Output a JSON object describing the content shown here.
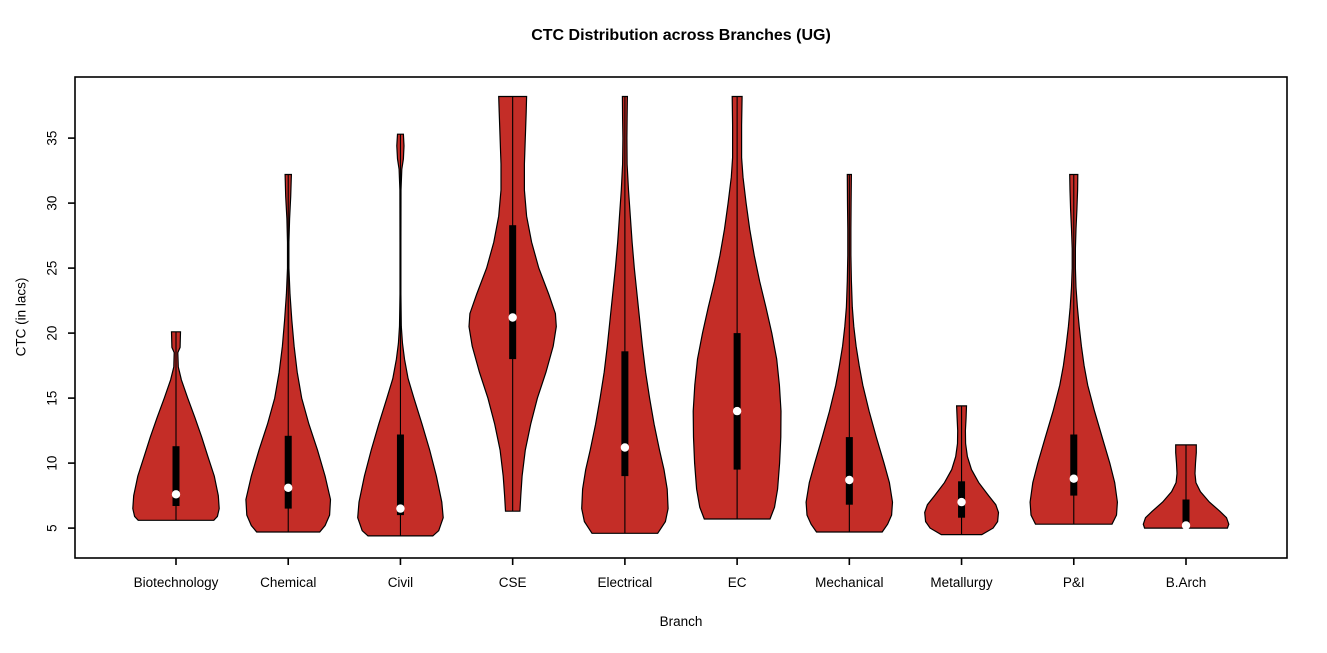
{
  "chart_data": {
    "type": "violin",
    "title": "CTC Distribution across Branches (UG)",
    "xlabel": "Branch",
    "ylabel": "CTC (in lacs)",
    "y_ticks": [
      5,
      10,
      15,
      20,
      25,
      30,
      35
    ],
    "ylim": [
      2.7,
      39.7
    ],
    "grid": false,
    "legend": "none",
    "fill_color": "#C42D27",
    "outline_color": "#000000",
    "box_color": "#000000",
    "median_dot_color": "#ffffff",
    "categories": [
      "Biotechnology",
      "Chemical",
      "Civil",
      "CSE",
      "Electrical",
      "EC",
      "Mechanical",
      "Metallurgy",
      "P&I",
      "B.Arch"
    ],
    "series": [
      {
        "branch": "Biotechnology",
        "stats": {
          "min": 5.6,
          "q1": 6.7,
          "median": 7.6,
          "q3": 11.3,
          "max": 20.1
        },
        "density_profile": [
          [
            20.1,
            0.1
          ],
          [
            18.9,
            0.09
          ],
          [
            18.5,
            0.04
          ],
          [
            17.4,
            0.05
          ],
          [
            16.4,
            0.12
          ],
          [
            15.0,
            0.26
          ],
          [
            13.5,
            0.42
          ],
          [
            12.0,
            0.57
          ],
          [
            10.5,
            0.71
          ],
          [
            9.0,
            0.85
          ],
          [
            7.5,
            0.94
          ],
          [
            6.5,
            0.96
          ],
          [
            5.9,
            0.92
          ],
          [
            5.6,
            0.84
          ]
        ]
      },
      {
        "branch": "Chemical",
        "stats": {
          "min": 4.7,
          "q1": 6.5,
          "median": 8.1,
          "q3": 12.1,
          "max": 32.2
        },
        "density_profile": [
          [
            32.2,
            0.07
          ],
          [
            30.5,
            0.055
          ],
          [
            28.8,
            0.03
          ],
          [
            27.0,
            0.015
          ],
          [
            25.0,
            0.015
          ],
          [
            23.0,
            0.04
          ],
          [
            21.0,
            0.08
          ],
          [
            19.0,
            0.13
          ],
          [
            17.0,
            0.2
          ],
          [
            15.0,
            0.3
          ],
          [
            13.0,
            0.46
          ],
          [
            11.0,
            0.65
          ],
          [
            9.0,
            0.82
          ],
          [
            7.2,
            0.94
          ],
          [
            6.0,
            0.92
          ],
          [
            5.2,
            0.82
          ],
          [
            4.7,
            0.7
          ]
        ]
      },
      {
        "branch": "Civil",
        "stats": {
          "min": 4.4,
          "q1": 6.0,
          "median": 6.5,
          "q3": 12.2,
          "max": 35.3
        },
        "density_profile": [
          [
            35.3,
            0.065
          ],
          [
            34.4,
            0.08
          ],
          [
            33.4,
            0.065
          ],
          [
            32.6,
            0.03
          ],
          [
            31.0,
            0.012
          ],
          [
            27.0,
            0.01
          ],
          [
            23.0,
            0.01
          ],
          [
            20.5,
            0.02
          ],
          [
            19.2,
            0.045
          ],
          [
            18.0,
            0.09
          ],
          [
            16.5,
            0.17
          ],
          [
            15.0,
            0.3
          ],
          [
            13.0,
            0.48
          ],
          [
            11.0,
            0.65
          ],
          [
            9.0,
            0.8
          ],
          [
            7.0,
            0.92
          ],
          [
            5.8,
            0.95
          ],
          [
            4.8,
            0.85
          ],
          [
            4.4,
            0.72
          ]
        ]
      },
      {
        "branch": "CSE",
        "stats": {
          "min": 6.3,
          "q1": 18.0,
          "median": 21.2,
          "q3": 28.3,
          "max": 38.2
        },
        "density_profile": [
          [
            38.2,
            0.31
          ],
          [
            37.0,
            0.3
          ],
          [
            35.0,
            0.28
          ],
          [
            33.0,
            0.26
          ],
          [
            31.0,
            0.26
          ],
          [
            29.0,
            0.31
          ],
          [
            27.0,
            0.42
          ],
          [
            25.0,
            0.58
          ],
          [
            23.0,
            0.8
          ],
          [
            21.5,
            0.95
          ],
          [
            20.5,
            0.97
          ],
          [
            19.0,
            0.9
          ],
          [
            17.0,
            0.74
          ],
          [
            15.0,
            0.55
          ],
          [
            13.0,
            0.4
          ],
          [
            11.0,
            0.28
          ],
          [
            9.0,
            0.21
          ],
          [
            7.5,
            0.18
          ],
          [
            6.3,
            0.16
          ]
        ]
      },
      {
        "branch": "Electrical",
        "stats": {
          "min": 4.6,
          "q1": 9.0,
          "median": 11.2,
          "q3": 18.6,
          "max": 38.2
        },
        "density_profile": [
          [
            38.2,
            0.055
          ],
          [
            36.5,
            0.05
          ],
          [
            35.0,
            0.045
          ],
          [
            33.0,
            0.05
          ],
          [
            31.0,
            0.08
          ],
          [
            29.0,
            0.12
          ],
          [
            27.0,
            0.16
          ],
          [
            25.0,
            0.21
          ],
          [
            23.0,
            0.27
          ],
          [
            21.0,
            0.33
          ],
          [
            19.0,
            0.39
          ],
          [
            17.0,
            0.46
          ],
          [
            15.0,
            0.55
          ],
          [
            13.0,
            0.65
          ],
          [
            11.0,
            0.77
          ],
          [
            9.5,
            0.87
          ],
          [
            8.0,
            0.94
          ],
          [
            6.5,
            0.96
          ],
          [
            5.5,
            0.9
          ],
          [
            4.6,
            0.73
          ]
        ]
      },
      {
        "branch": "EC",
        "stats": {
          "min": 5.7,
          "q1": 9.5,
          "median": 14.0,
          "q3": 20.0,
          "max": 38.2
        },
        "density_profile": [
          [
            38.2,
            0.11
          ],
          [
            36.0,
            0.1
          ],
          [
            33.5,
            0.1
          ],
          [
            32.0,
            0.13
          ],
          [
            30.0,
            0.2
          ],
          [
            28.0,
            0.28
          ],
          [
            26.0,
            0.38
          ],
          [
            24.0,
            0.5
          ],
          [
            22.0,
            0.64
          ],
          [
            20.0,
            0.77
          ],
          [
            18.0,
            0.88
          ],
          [
            16.0,
            0.94
          ],
          [
            14.0,
            0.975
          ],
          [
            12.0,
            0.97
          ],
          [
            10.0,
            0.945
          ],
          [
            8.0,
            0.9
          ],
          [
            6.6,
            0.83
          ],
          [
            5.7,
            0.73
          ]
        ]
      },
      {
        "branch": "Mechanical",
        "stats": {
          "min": 4.7,
          "q1": 6.8,
          "median": 8.7,
          "q3": 12.0,
          "max": 32.2
        },
        "density_profile": [
          [
            32.2,
            0.045
          ],
          [
            30.0,
            0.04
          ],
          [
            28.0,
            0.035
          ],
          [
            26.0,
            0.035
          ],
          [
            24.0,
            0.045
          ],
          [
            22.0,
            0.065
          ],
          [
            20.5,
            0.1
          ],
          [
            19.0,
            0.15
          ],
          [
            17.5,
            0.22
          ],
          [
            16.0,
            0.3
          ],
          [
            14.0,
            0.44
          ],
          [
            12.0,
            0.6
          ],
          [
            10.0,
            0.77
          ],
          [
            8.5,
            0.89
          ],
          [
            7.0,
            0.96
          ],
          [
            6.0,
            0.94
          ],
          [
            5.3,
            0.85
          ],
          [
            4.7,
            0.73
          ]
        ]
      },
      {
        "branch": "Metallurgy",
        "stats": {
          "min": 4.5,
          "q1": 5.8,
          "median": 7.0,
          "q3": 8.6,
          "max": 14.4
        },
        "density_profile": [
          [
            14.4,
            0.11
          ],
          [
            13.5,
            0.1
          ],
          [
            12.5,
            0.085
          ],
          [
            11.5,
            0.09
          ],
          [
            10.5,
            0.13
          ],
          [
            9.5,
            0.22
          ],
          [
            8.5,
            0.38
          ],
          [
            7.5,
            0.6
          ],
          [
            6.8,
            0.76
          ],
          [
            6.2,
            0.82
          ],
          [
            5.5,
            0.8
          ],
          [
            5.0,
            0.7
          ],
          [
            4.5,
            0.45
          ]
        ]
      },
      {
        "branch": "P&I",
        "stats": {
          "min": 5.3,
          "q1": 7.5,
          "median": 8.8,
          "q3": 12.2,
          "max": 32.2
        },
        "density_profile": [
          [
            32.2,
            0.09
          ],
          [
            31.0,
            0.085
          ],
          [
            29.5,
            0.07
          ],
          [
            28.0,
            0.05
          ],
          [
            26.5,
            0.035
          ],
          [
            25.0,
            0.035
          ],
          [
            23.5,
            0.05
          ],
          [
            22.0,
            0.08
          ],
          [
            20.5,
            0.12
          ],
          [
            19.0,
            0.17
          ],
          [
            17.5,
            0.23
          ],
          [
            16.0,
            0.31
          ],
          [
            14.0,
            0.46
          ],
          [
            12.0,
            0.63
          ],
          [
            10.0,
            0.8
          ],
          [
            8.5,
            0.91
          ],
          [
            7.0,
            0.97
          ],
          [
            6.0,
            0.95
          ],
          [
            5.3,
            0.85
          ]
        ]
      },
      {
        "branch": "B.Arch",
        "stats": {
          "min": 5.0,
          "q1": 5.1,
          "median": 5.2,
          "q3": 7.2,
          "max": 11.4
        },
        "density_profile": [
          [
            11.4,
            0.23
          ],
          [
            10.8,
            0.23
          ],
          [
            10.0,
            0.21
          ],
          [
            9.2,
            0.2
          ],
          [
            8.5,
            0.22
          ],
          [
            7.8,
            0.32
          ],
          [
            7.0,
            0.52
          ],
          [
            6.3,
            0.75
          ],
          [
            5.8,
            0.9
          ],
          [
            5.3,
            0.95
          ],
          [
            5.0,
            0.92
          ]
        ]
      }
    ]
  }
}
